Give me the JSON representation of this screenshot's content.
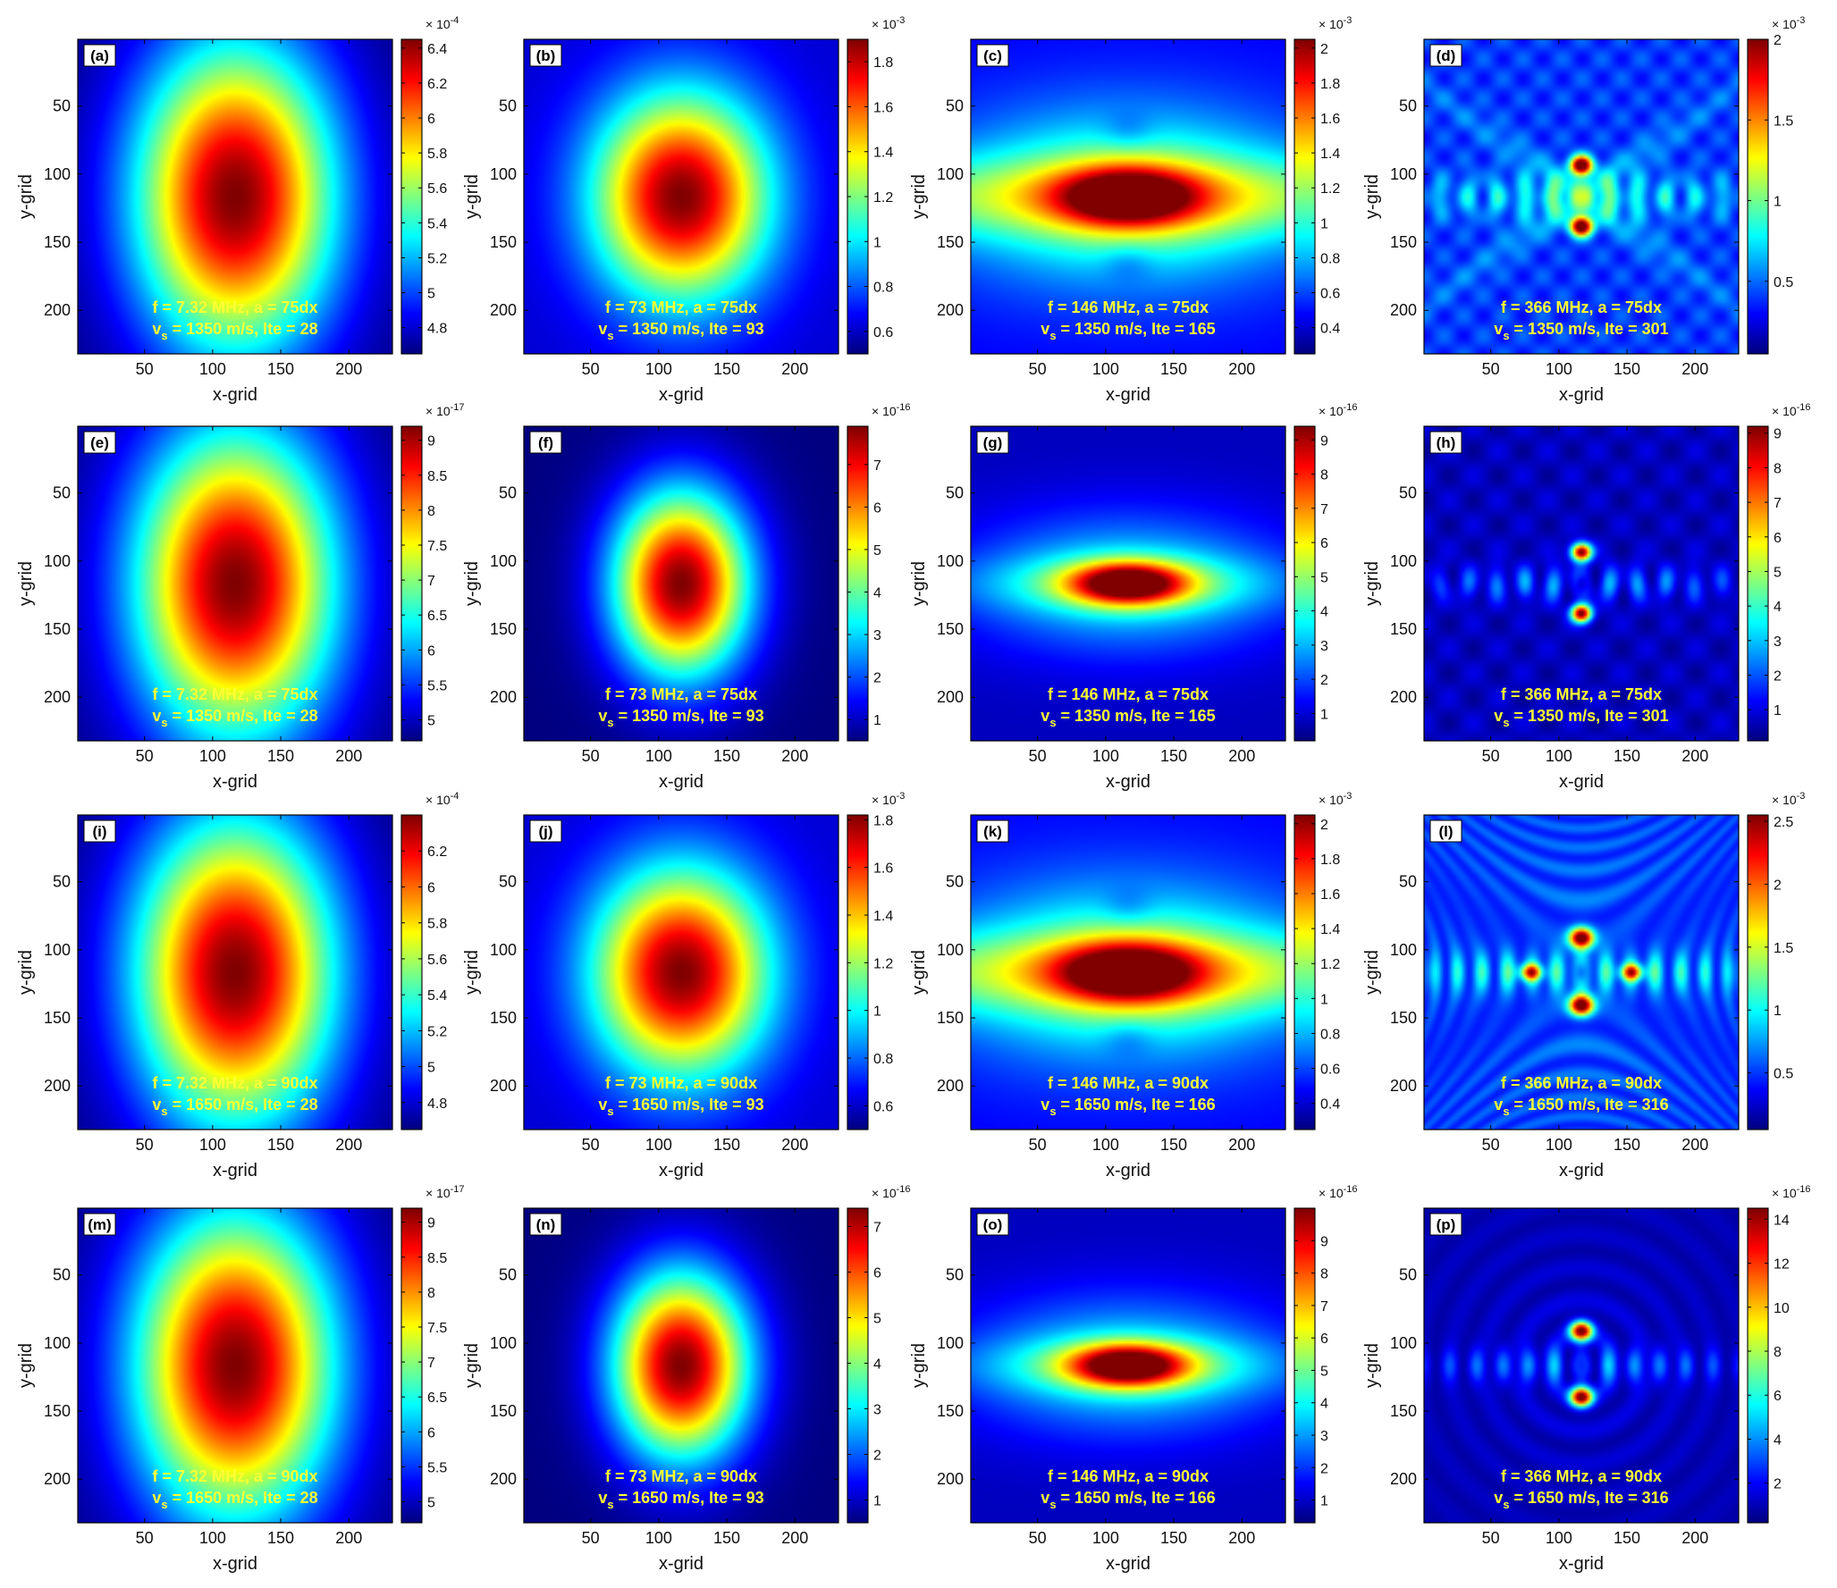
{
  "figure": {
    "type": "heatmap-grid",
    "rows": 4,
    "cols": 4
  },
  "chart_data": [
    {
      "type": "heatmap",
      "panel": "(a)",
      "pattern": "gauss_v",
      "xlabel": "x-grid",
      "ylabel": "y-grid",
      "xticks": [
        50,
        100,
        150,
        200
      ],
      "yticks": [
        50,
        100,
        150,
        200
      ],
      "xlim": [
        1,
        232
      ],
      "ylim": [
        1,
        232
      ],
      "colormap": "jet",
      "colorbar": {
        "ticks": [
          "6.4",
          "6.2",
          "6",
          "5.8",
          "5.6",
          "5.4",
          "5.2",
          "5",
          "4.8"
        ],
        "range": [
          4.65,
          6.45
        ],
        "exponent": "-4"
      },
      "annotation": {
        "line1": "f = 7.32 MHz,  a = 75dx",
        "line2_prefix": "v",
        "line2_sub": "s",
        "line2_rest": " = 1350 m/s,  Ite = 28"
      }
    },
    {
      "type": "heatmap",
      "panel": "(b)",
      "pattern": "gauss_c",
      "xlabel": "x-grid",
      "ylabel": "y-grid",
      "xticks": [
        50,
        100,
        150,
        200
      ],
      "yticks": [
        50,
        100,
        150,
        200
      ],
      "xlim": [
        1,
        232
      ],
      "ylim": [
        1,
        232
      ],
      "colormap": "jet",
      "colorbar": {
        "ticks": [
          "1.8",
          "1.6",
          "1.4",
          "1.2",
          "1",
          "0.8",
          "0.6"
        ],
        "range": [
          0.5,
          1.9
        ],
        "exponent": "-3"
      },
      "annotation": {
        "line1": "f = 73 MHz,  a = 75dx",
        "line2_prefix": "v",
        "line2_sub": "s",
        "line2_rest": " = 1350 m/s,  Ite = 93"
      }
    },
    {
      "type": "heatmap",
      "panel": "(c)",
      "pattern": "horiz",
      "xlabel": "x-grid",
      "ylabel": "y-grid",
      "xticks": [
        50,
        100,
        150,
        200
      ],
      "yticks": [
        50,
        100,
        150,
        200
      ],
      "xlim": [
        1,
        232
      ],
      "ylim": [
        1,
        232
      ],
      "colormap": "jet",
      "colorbar": {
        "ticks": [
          "2",
          "1.8",
          "1.6",
          "1.4",
          "1.2",
          "1",
          "0.8",
          "0.6",
          "0.4"
        ],
        "range": [
          0.25,
          2.05
        ],
        "exponent": "-3"
      },
      "annotation": {
        "line1": "f = 146 MHz,  a = 75dx",
        "line2_prefix": "v",
        "line2_sub": "s",
        "line2_rest": " = 1350 m/s,  Ite = 165"
      }
    },
    {
      "type": "heatmap",
      "panel": "(d)",
      "pattern": "dots",
      "xlabel": "x-grid",
      "ylabel": "y-grid",
      "xticks": [
        50,
        100,
        150,
        200
      ],
      "yticks": [
        50,
        100,
        150,
        200
      ],
      "xlim": [
        1,
        232
      ],
      "ylim": [
        1,
        232
      ],
      "colormap": "jet",
      "colorbar": {
        "ticks": [
          "2",
          "1.5",
          "1",
          "0.5"
        ],
        "range": [
          0.05,
          2.0
        ],
        "exponent": "-3"
      },
      "annotation": {
        "line1": "f = 366 MHz,  a = 75dx",
        "line2_prefix": "v",
        "line2_sub": "s",
        "line2_rest": " = 1350 m/s,  Ite = 301"
      }
    },
    {
      "type": "heatmap",
      "panel": "(e)",
      "pattern": "gauss_v",
      "xlabel": "x-grid",
      "ylabel": "y-grid",
      "xticks": [
        50,
        100,
        150,
        200
      ],
      "yticks": [
        50,
        100,
        150,
        200
      ],
      "xlim": [
        1,
        232
      ],
      "ylim": [
        1,
        232
      ],
      "colormap": "jet",
      "colorbar": {
        "ticks": [
          "9",
          "8.5",
          "8",
          "7.5",
          "7",
          "6.5",
          "6",
          "5.5",
          "5"
        ],
        "range": [
          4.7,
          9.2
        ],
        "exponent": "-17"
      },
      "annotation": {
        "line1": "f = 7.32 MHz,  a = 75dx",
        "line2_prefix": "v",
        "line2_sub": "s",
        "line2_rest": " = 1350 m/s,  Ite = 28"
      }
    },
    {
      "type": "heatmap",
      "panel": "(f)",
      "pattern": "gauss_c2",
      "xlabel": "x-grid",
      "ylabel": "y-grid",
      "xticks": [
        50,
        100,
        150,
        200
      ],
      "yticks": [
        50,
        100,
        150,
        200
      ],
      "xlim": [
        1,
        232
      ],
      "ylim": [
        1,
        232
      ],
      "colormap": "jet",
      "colorbar": {
        "ticks": [
          "7",
          "6",
          "5",
          "4",
          "3",
          "2",
          "1"
        ],
        "range": [
          0.5,
          7.9
        ],
        "exponent": "-16"
      },
      "annotation": {
        "line1": "f = 73 MHz,  a = 75dx",
        "line2_prefix": "v",
        "line2_sub": "s",
        "line2_rest": " = 1350 m/s,  Ite = 93"
      }
    },
    {
      "type": "heatmap",
      "panel": "(g)",
      "pattern": "horiz2",
      "xlabel": "x-grid",
      "ylabel": "y-grid",
      "xticks": [
        50,
        100,
        150,
        200
      ],
      "yticks": [
        50,
        100,
        150,
        200
      ],
      "xlim": [
        1,
        232
      ],
      "ylim": [
        1,
        232
      ],
      "colormap": "jet",
      "colorbar": {
        "ticks": [
          "9",
          "8",
          "7",
          "6",
          "5",
          "4",
          "3",
          "2",
          "1"
        ],
        "range": [
          0.2,
          9.4
        ],
        "exponent": "-16"
      },
      "annotation": {
        "line1": "f = 146 MHz,  a = 75dx",
        "line2_prefix": "v",
        "line2_sub": "s",
        "line2_rest": " = 1350 m/s,  Ite = 165"
      }
    },
    {
      "type": "heatmap",
      "panel": "(h)",
      "pattern": "dots2",
      "xlabel": "x-grid",
      "ylabel": "y-grid",
      "xticks": [
        50,
        100,
        150,
        200
      ],
      "yticks": [
        50,
        100,
        150,
        200
      ],
      "xlim": [
        1,
        232
      ],
      "ylim": [
        1,
        232
      ],
      "colormap": "jet",
      "colorbar": {
        "ticks": [
          "9",
          "8",
          "7",
          "6",
          "5",
          "4",
          "3",
          "2",
          "1"
        ],
        "range": [
          0.1,
          9.2
        ],
        "exponent": "-16"
      },
      "annotation": {
        "line1": "f = 366 MHz,  a = 75dx",
        "line2_prefix": "v",
        "line2_sub": "s",
        "line2_rest": " = 1350 m/s,  Ite = 301"
      }
    },
    {
      "type": "heatmap",
      "panel": "(i)",
      "pattern": "gauss_v",
      "xlabel": "x-grid",
      "ylabel": "y-grid",
      "xticks": [
        50,
        100,
        150,
        200
      ],
      "yticks": [
        50,
        100,
        150,
        200
      ],
      "xlim": [
        1,
        232
      ],
      "ylim": [
        1,
        232
      ],
      "colormap": "jet",
      "colorbar": {
        "ticks": [
          "6.2",
          "6",
          "5.8",
          "5.6",
          "5.4",
          "5.2",
          "5",
          "4.8"
        ],
        "range": [
          4.65,
          6.4
        ],
        "exponent": "-4"
      },
      "annotation": {
        "line1": "f = 7.32 MHz,  a = 90dx",
        "line2_prefix": "v",
        "line2_sub": "s",
        "line2_rest": " = 1650 m/s,  Ite = 28"
      }
    },
    {
      "type": "heatmap",
      "panel": "(j)",
      "pattern": "gauss_c",
      "xlabel": "x-grid",
      "ylabel": "y-grid",
      "xticks": [
        50,
        100,
        150,
        200
      ],
      "yticks": [
        50,
        100,
        150,
        200
      ],
      "xlim": [
        1,
        232
      ],
      "ylim": [
        1,
        232
      ],
      "colormap": "jet",
      "colorbar": {
        "ticks": [
          "1.8",
          "1.6",
          "1.4",
          "1.2",
          "1",
          "0.8",
          "0.6"
        ],
        "range": [
          0.5,
          1.82
        ],
        "exponent": "-3"
      },
      "annotation": {
        "line1": "f = 73 MHz,  a = 90dx",
        "line2_prefix": "v",
        "line2_sub": "s",
        "line2_rest": " = 1650 m/s,  Ite = 93"
      }
    },
    {
      "type": "heatmap",
      "panel": "(k)",
      "pattern": "horiz",
      "xlabel": "x-grid",
      "ylabel": "y-grid",
      "xticks": [
        50,
        100,
        150,
        200
      ],
      "yticks": [
        50,
        100,
        150,
        200
      ],
      "xlim": [
        1,
        232
      ],
      "ylim": [
        1,
        232
      ],
      "colormap": "jet",
      "colorbar": {
        "ticks": [
          "2",
          "1.8",
          "1.6",
          "1.4",
          "1.2",
          "1",
          "0.8",
          "0.6",
          "0.4"
        ],
        "range": [
          0.25,
          2.05
        ],
        "exponent": "-3"
      },
      "annotation": {
        "line1": "f = 146 MHz,  a = 90dx",
        "line2_prefix": "v",
        "line2_sub": "s",
        "line2_rest": " = 1650 m/s,  Ite = 166"
      }
    },
    {
      "type": "heatmap",
      "panel": "(l)",
      "pattern": "dots3",
      "xlabel": "x-grid",
      "ylabel": "y-grid",
      "xticks": [
        50,
        100,
        150,
        200
      ],
      "yticks": [
        50,
        100,
        150,
        200
      ],
      "xlim": [
        1,
        232
      ],
      "ylim": [
        1,
        232
      ],
      "colormap": "jet",
      "colorbar": {
        "ticks": [
          "2.5",
          "2",
          "1.5",
          "1",
          "0.5"
        ],
        "range": [
          0.05,
          2.55
        ],
        "exponent": "-3"
      },
      "annotation": {
        "line1": "f = 366 MHz,  a = 90dx",
        "line2_prefix": "v",
        "line2_sub": "s",
        "line2_rest": " = 1650 m/s,  Ite = 316"
      }
    },
    {
      "type": "heatmap",
      "panel": "(m)",
      "pattern": "gauss_v",
      "xlabel": "x-grid",
      "ylabel": "y-grid",
      "xticks": [
        50,
        100,
        150,
        200
      ],
      "yticks": [
        50,
        100,
        150,
        200
      ],
      "xlim": [
        1,
        232
      ],
      "ylim": [
        1,
        232
      ],
      "colormap": "jet",
      "colorbar": {
        "ticks": [
          "9",
          "8.5",
          "8",
          "7.5",
          "7",
          "6.5",
          "6",
          "5.5",
          "5"
        ],
        "range": [
          4.7,
          9.2
        ],
        "exponent": "-17"
      },
      "annotation": {
        "line1": "f = 7.32 MHz,  a = 90dx",
        "line2_prefix": "v",
        "line2_sub": "s",
        "line2_rest": " = 1650 m/s,  Ite = 28"
      }
    },
    {
      "type": "heatmap",
      "panel": "(n)",
      "pattern": "gauss_c2",
      "xlabel": "x-grid",
      "ylabel": "y-grid",
      "xticks": [
        50,
        100,
        150,
        200
      ],
      "yticks": [
        50,
        100,
        150,
        200
      ],
      "xlim": [
        1,
        232
      ],
      "ylim": [
        1,
        232
      ],
      "colormap": "jet",
      "colorbar": {
        "ticks": [
          "7",
          "6",
          "5",
          "4",
          "3",
          "2",
          "1"
        ],
        "range": [
          0.5,
          7.4
        ],
        "exponent": "-16"
      },
      "annotation": {
        "line1": "f = 73 MHz,  a = 90dx",
        "line2_prefix": "v",
        "line2_sub": "s",
        "line2_rest": " = 1650 m/s,  Ite = 93"
      }
    },
    {
      "type": "heatmap",
      "panel": "(o)",
      "pattern": "horiz2",
      "xlabel": "x-grid",
      "ylabel": "y-grid",
      "xticks": [
        50,
        100,
        150,
        200
      ],
      "yticks": [
        50,
        100,
        150,
        200
      ],
      "xlim": [
        1,
        232
      ],
      "ylim": [
        1,
        232
      ],
      "colormap": "jet",
      "colorbar": {
        "ticks": [
          "9",
          "8",
          "7",
          "6",
          "5",
          "4",
          "3",
          "2",
          "1"
        ],
        "range": [
          0.3,
          10.0
        ],
        "exponent": "-16"
      },
      "annotation": {
        "line1": "f = 146 MHz,  a = 90dx",
        "line2_prefix": "v",
        "line2_sub": "s",
        "line2_rest": " = 1650 m/s,  Ite = 166"
      }
    },
    {
      "type": "heatmap",
      "panel": "(p)",
      "pattern": "dots3b",
      "xlabel": "x-grid",
      "ylabel": "y-grid",
      "xticks": [
        50,
        100,
        150,
        200
      ],
      "yticks": [
        50,
        100,
        150,
        200
      ],
      "xlim": [
        1,
        232
      ],
      "ylim": [
        1,
        232
      ],
      "colormap": "jet",
      "colorbar": {
        "ticks": [
          "14",
          "12",
          "10",
          "8",
          "6",
          "4",
          "2"
        ],
        "range": [
          0.2,
          14.5
        ],
        "exponent": "-16"
      },
      "annotation": {
        "line1": "f = 366 MHz,  a = 90dx",
        "line2_prefix": "v",
        "line2_sub": "s",
        "line2_rest": " = 1650 m/s,  Ite = 316"
      }
    }
  ]
}
